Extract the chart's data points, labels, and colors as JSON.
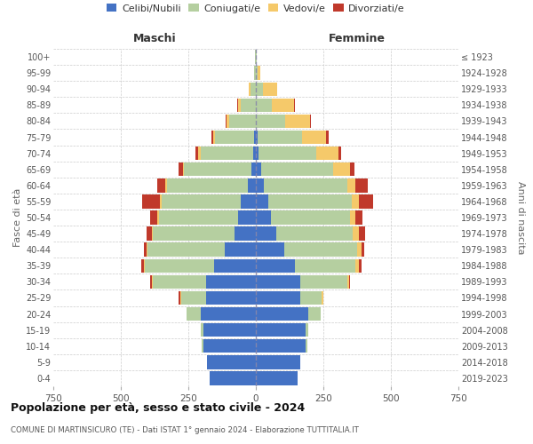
{
  "age_groups": [
    "0-4",
    "5-9",
    "10-14",
    "15-19",
    "20-24",
    "25-29",
    "30-34",
    "35-39",
    "40-44",
    "45-49",
    "50-54",
    "55-59",
    "60-64",
    "65-69",
    "70-74",
    "75-79",
    "80-84",
    "85-89",
    "90-94",
    "95-99",
    "100+"
  ],
  "birth_years": [
    "2019-2023",
    "2014-2018",
    "2009-2013",
    "2004-2008",
    "1999-2003",
    "1994-1998",
    "1989-1993",
    "1984-1988",
    "1979-1983",
    "1974-1978",
    "1969-1973",
    "1964-1968",
    "1959-1963",
    "1954-1958",
    "1949-1953",
    "1944-1948",
    "1939-1943",
    "1934-1938",
    "1929-1933",
    "1924-1928",
    "≤ 1923"
  ],
  "male": {
    "celibi": [
      170,
      180,
      195,
      195,
      205,
      185,
      185,
      155,
      115,
      80,
      65,
      55,
      30,
      15,
      10,
      5,
      0,
      0,
      0,
      0,
      0
    ],
    "coniugati": [
      0,
      0,
      5,
      10,
      50,
      90,
      195,
      255,
      285,
      300,
      295,
      295,
      300,
      250,
      195,
      145,
      100,
      55,
      20,
      5,
      2
    ],
    "vedovi": [
      0,
      0,
      0,
      0,
      2,
      5,
      5,
      5,
      5,
      5,
      5,
      5,
      5,
      5,
      8,
      8,
      8,
      10,
      5,
      2,
      0
    ],
    "divorziati": [
      0,
      0,
      0,
      0,
      0,
      5,
      5,
      10,
      10,
      20,
      25,
      65,
      30,
      15,
      10,
      8,
      5,
      5,
      0,
      0,
      0
    ]
  },
  "female": {
    "nubili": [
      155,
      165,
      185,
      185,
      195,
      165,
      165,
      145,
      105,
      75,
      55,
      45,
      30,
      20,
      10,
      5,
      0,
      0,
      0,
      0,
      0
    ],
    "coniugate": [
      0,
      0,
      5,
      10,
      45,
      80,
      175,
      225,
      270,
      285,
      295,
      310,
      310,
      265,
      215,
      165,
      110,
      60,
      25,
      5,
      2
    ],
    "vedove": [
      0,
      0,
      0,
      0,
      0,
      5,
      5,
      10,
      15,
      20,
      20,
      25,
      30,
      65,
      80,
      90,
      90,
      80,
      55,
      10,
      2
    ],
    "divorziate": [
      0,
      0,
      0,
      0,
      0,
      0,
      5,
      10,
      10,
      25,
      25,
      55,
      45,
      15,
      10,
      10,
      5,
      5,
      0,
      0,
      0
    ]
  },
  "colors": {
    "celibi_nubili": "#4472c4",
    "coniugati": "#b5cfa0",
    "vedovi": "#f5c96a",
    "divorziati": "#c0392b"
  },
  "title": "Popolazione per età, sesso e stato civile - 2024",
  "subtitle": "COMUNE DI MARTINSICURO (TE) - Dati ISTAT 1° gennaio 2024 - Elaborazione TUTTITALIA.IT",
  "xlabel_left": "Maschi",
  "xlabel_right": "Femmine",
  "ylabel_left": "Fasce di età",
  "ylabel_right": "Anni di nascita",
  "xlim": 750,
  "bg_color": "#ffffff",
  "grid_color": "#cccccc",
  "bar_height": 0.85
}
